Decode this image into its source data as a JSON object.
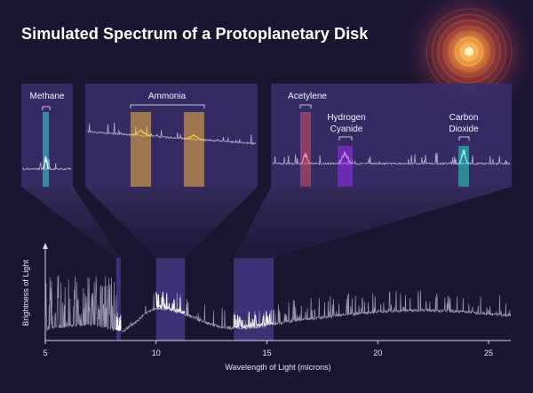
{
  "title": "Simulated Spectrum of a Protoplanetary Disk",
  "colors": {
    "background": "#1b1530",
    "inset_panel": "#3a2c6b",
    "highlight": "#4a3a8c",
    "spectrum": "#c8c4dc",
    "methane": "#3fd6e0",
    "ammonia": "#f2b43c",
    "acetylene": "#d0506a",
    "hydrogen_cyanide": "#9a2cf0",
    "carbon_dioxide": "#28d6c0",
    "disk_glow": "#f08a3a"
  },
  "chart_data": [
    {
      "type": "line",
      "role": "main-spectrum",
      "title": "",
      "xlabel": "Wavelength of Light (microns)",
      "ylabel": "Brightness of Light",
      "xlim": [
        5,
        26
      ],
      "ylim": [
        0,
        1
      ],
      "x_ticks": [
        "5",
        "10",
        "15",
        "20",
        "25"
      ],
      "y_ticks_shown": false,
      "grid": false,
      "x": [
        5,
        5.5,
        6,
        6.5,
        7,
        7.5,
        8,
        8.5,
        9,
        9.5,
        10,
        10.5,
        11,
        11.5,
        12,
        12.5,
        13,
        13.5,
        14,
        14.5,
        15,
        16,
        17,
        18,
        19,
        20,
        21,
        22,
        23,
        24,
        25,
        26
      ],
      "y": [
        0.12,
        0.14,
        0.15,
        0.16,
        0.17,
        0.15,
        0.12,
        0.1,
        0.18,
        0.28,
        0.34,
        0.33,
        0.3,
        0.26,
        0.21,
        0.17,
        0.14,
        0.13,
        0.13,
        0.14,
        0.16,
        0.2,
        0.23,
        0.26,
        0.28,
        0.3,
        0.31,
        0.32,
        0.31,
        0.3,
        0.28,
        0.26
      ],
      "highlighted_regions": [
        {
          "x": [
            8.2,
            8.4
          ]
        },
        {
          "x": [
            10.0,
            11.3
          ]
        },
        {
          "x": [
            13.5,
            15.3
          ]
        }
      ]
    },
    {
      "type": "line",
      "role": "inset",
      "molecules": [
        {
          "label": "Methane",
          "color_key": "methane"
        }
      ]
    },
    {
      "type": "line",
      "role": "inset",
      "molecules": [
        {
          "label": "Ammonia",
          "color_key": "ammonia"
        }
      ]
    },
    {
      "type": "line",
      "role": "inset",
      "molecules": [
        {
          "label": "Acetylene",
          "color_key": "acetylene"
        },
        {
          "label": "Hydrogen Cyanide",
          "label_lines": [
            "Hydrogen",
            "Cyanide"
          ],
          "color_key": "hydrogen_cyanide"
        },
        {
          "label": "Carbon Dioxide",
          "label_lines": [
            "Carbon",
            "Dioxide"
          ],
          "color_key": "carbon_dioxide"
        }
      ]
    }
  ]
}
